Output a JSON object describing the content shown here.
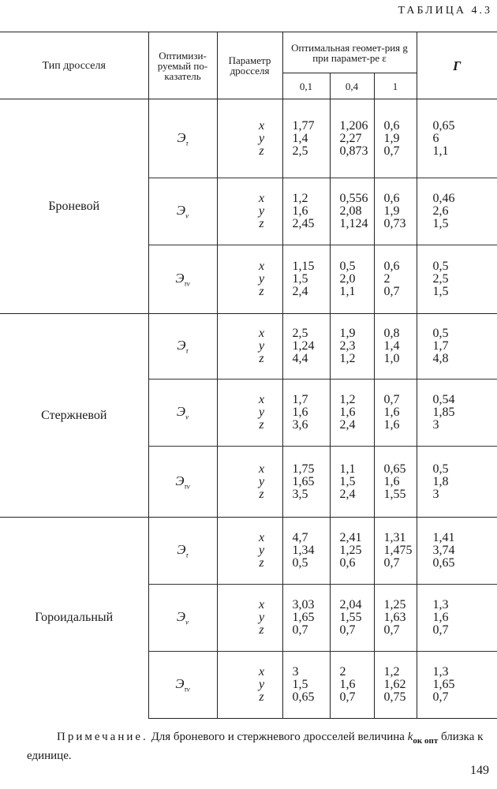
{
  "caption": "ТАБЛИЦА 4.3",
  "headers": {
    "type": "Тип дросселя",
    "optimized": "Оптимизи-руемый по-казатель",
    "parameter": "Параметр дросселя",
    "geometry": "Оптимальная геомет-рия g при парамет-ре ε",
    "eps_values": [
      "0,1",
      "0,4",
      "1"
    ],
    "gamma": "Г"
  },
  "groups": [
    {
      "type": "Броневой",
      "rows": [
        {
          "index": "Э",
          "sub": "τ",
          "params": [
            "x",
            "y",
            "z"
          ],
          "e01": [
            "1,77",
            "1,4",
            "2,5"
          ],
          "e04": [
            "1,206",
            "2,27",
            "0,873"
          ],
          "e1": [
            "0,6",
            "1,9",
            "0,7"
          ],
          "gamma": [
            "0,65",
            "6",
            "1,1"
          ]
        },
        {
          "index": "Э",
          "sub": "ν",
          "params": [
            "x",
            "y",
            "z"
          ],
          "e01": [
            "1,2",
            "1,6",
            "2,45"
          ],
          "e04": [
            "0,556",
            "2,08",
            "1,124"
          ],
          "e1": [
            "0,6",
            "1,9",
            "0,73"
          ],
          "gamma": [
            "0,46",
            "2,6",
            "1,5"
          ]
        },
        {
          "index": "Э",
          "sub": "τν",
          "params": [
            "x",
            "y",
            "z"
          ],
          "e01": [
            "1,15",
            "1,5",
            "2,4"
          ],
          "e04": [
            "0,5",
            "2,0",
            "1,1"
          ],
          "e1": [
            "0,6",
            "2",
            "0,7"
          ],
          "gamma": [
            "0,5",
            "2,5",
            "1,5"
          ]
        }
      ]
    },
    {
      "type": "Стержневой",
      "rows": [
        {
          "index": "Э",
          "sub": "τ",
          "params": [
            "x",
            "y",
            "z"
          ],
          "e01": [
            "2,5",
            "1,24",
            "4,4"
          ],
          "e04": [
            "1,9",
            "2,3",
            "1,2"
          ],
          "e1": [
            "0,8",
            "1,4",
            "1,0"
          ],
          "gamma": [
            "0,5",
            "1,7",
            "4,8"
          ]
        },
        {
          "index": "Э",
          "sub": "ν",
          "params": [
            "x",
            "y",
            "z"
          ],
          "e01": [
            "1,7",
            "1,6",
            "3,6"
          ],
          "e04": [
            "1,2",
            "1,6",
            "2,4"
          ],
          "e1": [
            "0,7",
            "1,6",
            "1,6"
          ],
          "gamma": [
            "0,54",
            "1,85",
            "3"
          ]
        },
        {
          "index": "Э",
          "sub": "τν",
          "params": [
            "x",
            "y",
            "z"
          ],
          "e01": [
            "1,75",
            "1,65",
            "3,5"
          ],
          "e04": [
            "1,1",
            "1,5",
            "2,4"
          ],
          "e1": [
            "0,65",
            "1,6",
            "1,55"
          ],
          "gamma": [
            "0,5",
            "1,8",
            "3"
          ]
        }
      ]
    },
    {
      "type": "Гороидальный",
      "rows": [
        {
          "index": "Э",
          "sub": "τ",
          "params": [
            "x",
            "y",
            "z"
          ],
          "e01": [
            "4,7",
            "1,34",
            "0,5"
          ],
          "e04": [
            "2,41",
            "1,25",
            "0,6"
          ],
          "e1": [
            "1,31",
            "1,475",
            "0,7"
          ],
          "gamma": [
            "1,41",
            "3,74",
            "0,65"
          ]
        },
        {
          "index": "Э",
          "sub": "ν",
          "params": [
            "x",
            "y",
            "z"
          ],
          "e01": [
            "3,03",
            "1,65",
            "0,7"
          ],
          "e04": [
            "2,04",
            "1,55",
            "0,7"
          ],
          "e1": [
            "1,25",
            "1,63",
            "0,7"
          ],
          "gamma": [
            "1,3",
            "1,6",
            "0,7"
          ]
        },
        {
          "index": "Э",
          "sub": "τν",
          "params": [
            "x",
            "y",
            "z"
          ],
          "e01": [
            "3",
            "1,5",
            "0,65"
          ],
          "e04": [
            "2",
            "1,6",
            "0,7"
          ],
          "e1": [
            "1,2",
            "1,62",
            "0,75"
          ],
          "gamma": [
            "1,3",
            "1,65",
            "0,7"
          ]
        }
      ]
    }
  ],
  "note": {
    "label": "Примечание.",
    "text_before": " Для броневого и стержневого дросселей величина ",
    "symbol": "k",
    "symbol_sub": "ок опт",
    "text_after": " близка к единице."
  },
  "page_number": "149"
}
